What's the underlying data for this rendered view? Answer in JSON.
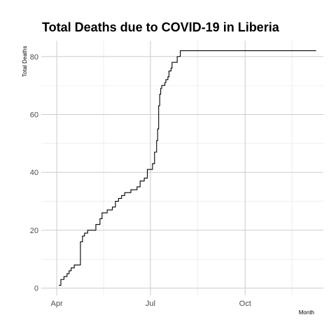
{
  "chart_data": {
    "type": "line",
    "title": "Total Deaths due to COVID-19 in Liberia",
    "xlabel": "Month",
    "ylabel": "Total Deaths",
    "x_ticks": [
      {
        "date": "2020-04-01",
        "label": "Apr"
      },
      {
        "date": "2020-07-01",
        "label": "Jul"
      },
      {
        "date": "2020-10-01",
        "label": "Oct"
      }
    ],
    "y_ticks": [
      0,
      20,
      40,
      60,
      80
    ],
    "xlim": [
      "2020-03-17",
      "2020-12-16"
    ],
    "ylim": [
      -2.5,
      85.5
    ],
    "grid": true,
    "line_color": "#000000",
    "grid_major_color": "#cccccc",
    "grid_minor_color": "#e3e3e3",
    "series": [
      {
        "step": true,
        "x": [
          "2020-04-03",
          "2020-04-05",
          "2020-04-08",
          "2020-04-11",
          "2020-04-13",
          "2020-04-15",
          "2020-04-18",
          "2020-04-21",
          "2020-04-24",
          "2020-04-26",
          "2020-04-28",
          "2020-05-01",
          "2020-05-03",
          "2020-05-07",
          "2020-05-09",
          "2020-05-13",
          "2020-05-15",
          "2020-05-18",
          "2020-05-20",
          "2020-05-22",
          "2020-05-25",
          "2020-05-28",
          "2020-05-31",
          "2020-06-03",
          "2020-06-06",
          "2020-06-09",
          "2020-06-12",
          "2020-06-15",
          "2020-06-18",
          "2020-06-21",
          "2020-06-25",
          "2020-06-28",
          "2020-07-03",
          "2020-07-05",
          "2020-07-07",
          "2020-07-08",
          "2020-07-09",
          "2020-07-10",
          "2020-07-11",
          "2020-07-12",
          "2020-07-13",
          "2020-07-14",
          "2020-07-15",
          "2020-07-16",
          "2020-07-17",
          "2020-07-18",
          "2020-07-19",
          "2020-07-20",
          "2020-07-21",
          "2020-07-22",
          "2020-07-24",
          "2020-07-27",
          "2020-07-30",
          "2020-08-01",
          "2020-08-03",
          "2020-08-05",
          "2020-08-07",
          "2020-08-09",
          "2020-08-11",
          "2020-08-13",
          "2020-08-15",
          "2020-12-09"
        ],
        "values": [
          1,
          3,
          4,
          5,
          6,
          7,
          8,
          8,
          16,
          18,
          19,
          20,
          20,
          20,
          22,
          24,
          26,
          26,
          27,
          27,
          28,
          30,
          31,
          32,
          33,
          33,
          34,
          34,
          35,
          37,
          38,
          41,
          43,
          47,
          51,
          55,
          63,
          67,
          69,
          70,
          70,
          70,
          71,
          72,
          72,
          73,
          75,
          75,
          76,
          78,
          78,
          80,
          82,
          82,
          82,
          82,
          82,
          82,
          82,
          82,
          82,
          82
        ]
      }
    ]
  }
}
